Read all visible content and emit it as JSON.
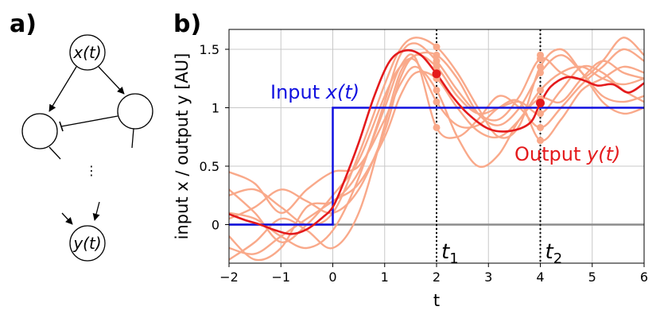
{
  "panels": {
    "a_label": "a)",
    "b_label": "b)"
  },
  "diagram": {
    "top_node": "x(t)",
    "bottom_node": "y(t)",
    "ellipsis": "⋮"
  },
  "chart_data": {
    "type": "line",
    "xlabel": "t",
    "ylabel": "input x / output y [AU]",
    "xlim": [
      -2,
      6
    ],
    "ylim": [
      -0.33,
      1.67
    ],
    "xticks": [
      -2,
      -1,
      0,
      1,
      2,
      3,
      4,
      5,
      6
    ],
    "xtick_labels": [
      "−2",
      "−1",
      "0",
      "1",
      "2",
      "3",
      "4",
      "5",
      "6"
    ],
    "yticks": [
      0,
      0.5,
      1,
      1.5
    ],
    "ytick_labels": [
      "0",
      "0.5",
      "1",
      "1.5"
    ],
    "grid": true,
    "colors": {
      "input": "#1010e0",
      "output": "#e41a1c",
      "samples": "#f9a98a",
      "zero": "#8c8c8c",
      "grid": "#c8c8c8"
    },
    "input_label": {
      "prefix": "Input ",
      "var": "x(t)"
    },
    "output_label": {
      "prefix": "Output ",
      "var": "y(t)"
    },
    "markers": [
      {
        "name": "t",
        "sub": "1",
        "x": 2
      },
      {
        "name": "t",
        "sub": "2",
        "x": 4
      }
    ],
    "input_series": {
      "x": [
        -2,
        0,
        0,
        6
      ],
      "y": [
        0,
        0,
        1,
        1
      ]
    },
    "output_series": {
      "x": [
        -2,
        -1.7,
        -1.4,
        -1.1,
        -0.8,
        -0.5,
        -0.2,
        0,
        0.2,
        0.5,
        0.8,
        1.1,
        1.4,
        1.7,
        2,
        2.3,
        2.6,
        3,
        3.4,
        3.8,
        4,
        4.2,
        4.5,
        4.8,
        5.1,
        5.4,
        5.7,
        6
      ],
      "y": [
        0.09,
        0.04,
        0.0,
        -0.05,
        -0.08,
        -0.04,
        0.06,
        0.15,
        0.35,
        0.7,
        1.1,
        1.4,
        1.49,
        1.45,
        1.29,
        1.1,
        0.95,
        0.82,
        0.8,
        0.87,
        1.04,
        1.18,
        1.26,
        1.24,
        1.19,
        1.2,
        1.13,
        1.21
      ]
    },
    "sample_series": [
      {
        "x": [
          -2,
          -1.5,
          -1,
          -0.5,
          0,
          0.5,
          1,
          1.3,
          1.6,
          2,
          2.4,
          2.8,
          3.2,
          3.6,
          4,
          4.4,
          4.8,
          5.2,
          5.6,
          6
        ],
        "y": [
          0.1,
          0.05,
          -0.1,
          -0.2,
          -0.05,
          0.4,
          1.05,
          1.45,
          1.55,
          1.4,
          1.15,
          0.95,
          0.9,
          1.1,
          1.42,
          1.3,
          1.25,
          1.4,
          1.6,
          1.45
        ]
      },
      {
        "x": [
          -2,
          -1.5,
          -1,
          -0.5,
          0,
          0.5,
          1,
          1.3,
          1.6,
          2,
          2.4,
          2.8,
          3.2,
          3.6,
          4,
          4.4,
          4.8,
          5.2,
          5.6,
          6
        ],
        "y": [
          0.25,
          0.3,
          0.15,
          0.0,
          0.1,
          0.6,
          1.2,
          1.5,
          1.6,
          1.52,
          1.3,
          1.0,
          0.75,
          0.85,
          1.35,
          1.5,
          1.3,
          1.05,
          0.95,
          1.0
        ]
      },
      {
        "x": [
          -2,
          -1.5,
          -1,
          -0.5,
          0,
          0.5,
          1,
          1.3,
          1.6,
          2,
          2.4,
          2.8,
          3.2,
          3.6,
          4,
          4.4,
          4.8,
          5.2,
          5.6,
          6
        ],
        "y": [
          -0.2,
          -0.25,
          -0.1,
          0.05,
          0.2,
          0.35,
          0.75,
          1.1,
          1.3,
          1.25,
          1.0,
          0.8,
          0.75,
          0.9,
          1.15,
          1.3,
          1.35,
          1.25,
          1.2,
          1.25
        ]
      },
      {
        "x": [
          -2,
          -1.5,
          -1,
          -0.5,
          0,
          0.5,
          1,
          1.3,
          1.6,
          2,
          2.4,
          2.8,
          3.2,
          3.6,
          4,
          4.4,
          4.8,
          5.2,
          5.6,
          6
        ],
        "y": [
          0.45,
          0.35,
          0.1,
          0.3,
          0.45,
          0.5,
          0.9,
          1.2,
          1.35,
          1.15,
          0.75,
          0.5,
          0.6,
          0.9,
          1.08,
          1.05,
          1.25,
          1.4,
          1.3,
          1.25
        ]
      },
      {
        "x": [
          -2,
          -1.5,
          -1,
          -0.5,
          0,
          0.5,
          1,
          1.3,
          1.6,
          2,
          2.4,
          2.8,
          3.2,
          3.6,
          4,
          4.4,
          4.8,
          5.2,
          5.6,
          6
        ],
        "y": [
          -0.3,
          -0.15,
          0.05,
          -0.05,
          -0.2,
          0.1,
          0.85,
          1.3,
          1.45,
          1.45,
          1.25,
          0.95,
          0.85,
          1.0,
          1.3,
          1.45,
          1.3,
          1.1,
          1.05,
          1.1
        ]
      },
      {
        "x": [
          -2,
          -1.5,
          -1,
          -0.5,
          0,
          0.5,
          1,
          1.3,
          1.6,
          2,
          2.4,
          2.8,
          3.2,
          3.6,
          4,
          4.4,
          4.8,
          5.2,
          5.6,
          6
        ],
        "y": [
          0.05,
          0.15,
          0.3,
          0.2,
          0.1,
          0.3,
          0.8,
          1.25,
          1.45,
          1.35,
          1.1,
          0.95,
          1.0,
          1.05,
          0.95,
          1.15,
          1.35,
          1.3,
          1.15,
          1.05
        ]
      },
      {
        "x": [
          -2,
          -1.5,
          -1,
          -0.5,
          0,
          0.5,
          1,
          1.3,
          1.6,
          2,
          2.4,
          2.8,
          3.2,
          3.6,
          4,
          4.4,
          4.8,
          5.2,
          5.6,
          6
        ],
        "y": [
          -0.1,
          -0.3,
          -0.2,
          0.15,
          0.2,
          0.45,
          1.0,
          1.35,
          1.42,
          0.83,
          0.75,
          0.9,
          1.1,
          1.0,
          0.83,
          1.0,
          1.2,
          1.35,
          1.5,
          1.4
        ]
      },
      {
        "x": [
          -2,
          -1.5,
          -1,
          -0.5,
          0,
          0.5,
          1,
          1.3,
          1.6,
          2,
          2.4,
          2.8,
          3.2,
          3.6,
          4,
          4.4,
          4.8,
          5.2,
          5.6,
          6
        ],
        "y": [
          0.3,
          0.1,
          -0.15,
          0.0,
          0.25,
          0.55,
          1.1,
          1.35,
          1.4,
          1.05,
          0.85,
          0.85,
          1.0,
          1.05,
          0.72,
          0.9,
          1.15,
          1.25,
          1.35,
          1.3
        ]
      }
    ],
    "sample_points_t1": [
      1.52,
      1.45,
      1.4,
      1.35,
      1.3,
      1.25,
      1.15,
      1.05,
      0.83
    ],
    "sample_points_t2": [
      1.45,
      1.42,
      1.35,
      1.3,
      1.15,
      1.08,
      0.95,
      0.83,
      0.72
    ],
    "output_point_t1": 1.29,
    "output_point_t2": 1.04
  }
}
